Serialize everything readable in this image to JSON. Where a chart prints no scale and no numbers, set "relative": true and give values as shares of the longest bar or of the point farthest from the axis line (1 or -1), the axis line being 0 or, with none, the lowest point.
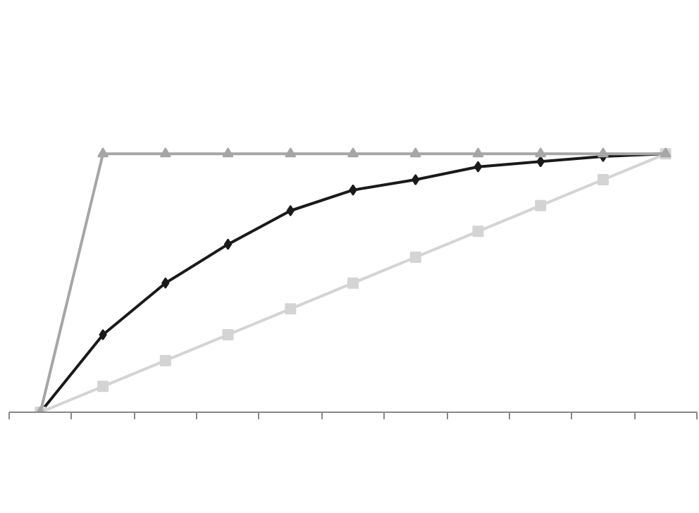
{
  "chart_data": {
    "type": "line",
    "relative": true,
    "categories": [
      null,
      null,
      null,
      null,
      null,
      null,
      null,
      null,
      null,
      null,
      null
    ],
    "series": [
      {
        "color": "#1a1a1a",
        "marker": "diamond",
        "values": [
          0,
          0.3,
          0.5,
          0.65,
          0.78,
          0.86,
          0.9,
          0.95,
          0.97,
          0.99,
          1
        ]
      },
      {
        "color": "#d4d4d4",
        "marker": "square",
        "values": [
          0,
          0.1,
          0.2,
          0.3,
          0.4,
          0.5,
          0.6,
          0.7,
          0.8,
          0.9,
          1
        ]
      },
      {
        "color": "#a6a6a6",
        "marker": "triangle",
        "values": [
          0,
          1,
          1,
          1,
          1,
          1,
          1,
          1,
          1,
          1,
          1
        ]
      }
    ],
    "line_style": "solid"
  }
}
